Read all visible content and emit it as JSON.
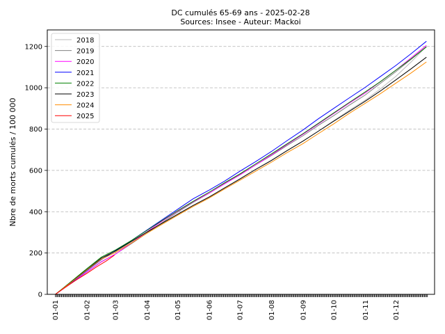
{
  "chart_data": {
    "type": "line",
    "title": "DC cumulés 65-69 ans  - 2025-02-28",
    "subtitle": "Sources: Insee - Auteur: Mackoi",
    "xlabel": "",
    "ylabel": "Nbre de morts cumulés / 100 000",
    "ylim": [
      0,
      1280
    ],
    "xlim": [
      -8,
      372
    ],
    "yticks": [
      0,
      200,
      400,
      600,
      800,
      1000,
      1200
    ],
    "xticks": [
      {
        "day": 0,
        "label": "01-01"
      },
      {
        "day": 31,
        "label": "01-02"
      },
      {
        "day": 59,
        "label": "01-03"
      },
      {
        "day": 90,
        "label": "01-04"
      },
      {
        "day": 120,
        "label": "01-05"
      },
      {
        "day": 151,
        "label": "01-06"
      },
      {
        "day": 181,
        "label": "01-07"
      },
      {
        "day": 212,
        "label": "01-08"
      },
      {
        "day": 243,
        "label": "01-09"
      },
      {
        "day": 273,
        "label": "01-10"
      },
      {
        "day": 304,
        "label": "01-11"
      },
      {
        "day": 334,
        "label": "01-12"
      }
    ],
    "grid": "y-dashed",
    "legend_position": "top-left",
    "series": [
      {
        "name": "2018",
        "color": "#bbbbbb",
        "x": [
          0,
          15,
          31,
          45,
          59,
          75,
          90,
          105,
          120,
          135,
          151,
          166,
          181,
          196,
          212,
          227,
          243,
          258,
          273,
          288,
          304,
          319,
          334,
          349,
          364
        ],
        "values": [
          0,
          55,
          115,
          168,
          205,
          255,
          300,
          345,
          385,
          425,
          470,
          515,
          560,
          605,
          650,
          695,
          742,
          790,
          840,
          890,
          940,
          995,
          1055,
          1125,
          1200
        ]
      },
      {
        "name": "2019",
        "color": "#808080",
        "x": [
          0,
          15,
          31,
          45,
          59,
          75,
          90,
          105,
          120,
          135,
          151,
          166,
          181,
          196,
          212,
          227,
          243,
          258,
          273,
          288,
          304,
          319,
          334,
          349,
          364
        ],
        "values": [
          0,
          52,
          108,
          158,
          195,
          247,
          297,
          348,
          398,
          445,
          490,
          537,
          580,
          625,
          672,
          720,
          768,
          818,
          865,
          915,
          965,
          1022,
          1078,
          1138,
          1198
        ]
      },
      {
        "name": "2020",
        "color": "#ff00ff",
        "x": [
          0,
          15,
          31,
          45,
          59,
          75,
          90,
          105,
          120,
          135,
          151,
          166,
          181,
          196,
          212,
          227,
          243,
          258,
          273,
          288,
          304,
          319,
          334,
          349,
          364
        ],
        "values": [
          0,
          52,
          108,
          157,
          195,
          250,
          303,
          355,
          403,
          448,
          490,
          535,
          578,
          625,
          675,
          725,
          775,
          825,
          875,
          925,
          975,
          1030,
          1085,
          1145,
          1205
        ]
      },
      {
        "name": "2021",
        "color": "#0000ff",
        "x": [
          0,
          15,
          31,
          45,
          59,
          75,
          90,
          105,
          120,
          135,
          151,
          166,
          181,
          196,
          212,
          227,
          243,
          258,
          273,
          288,
          304,
          319,
          334,
          349,
          364
        ],
        "values": [
          0,
          55,
          115,
          168,
          212,
          262,
          312,
          362,
          412,
          462,
          505,
          548,
          596,
          641,
          692,
          743,
          796,
          850,
          900,
          950,
          1002,
          1055,
          1108,
          1165,
          1225
        ]
      },
      {
        "name": "2022",
        "color": "#008000",
        "x": [
          0,
          15,
          31,
          45,
          59,
          75,
          90,
          105,
          120,
          135,
          151,
          166,
          181,
          196,
          212,
          227,
          243,
          258,
          273,
          288,
          304,
          319,
          334,
          349,
          364
        ],
        "values": [
          0,
          60,
          125,
          180,
          215,
          262,
          310,
          358,
          405,
          450,
          495,
          540,
          583,
          630,
          680,
          728,
          778,
          828,
          878,
          928,
          980,
          1030,
          1085,
          1140,
          1198
        ]
      },
      {
        "name": "2023",
        "color": "#000000",
        "x": [
          0,
          15,
          31,
          45,
          59,
          75,
          90,
          105,
          120,
          135,
          151,
          166,
          181,
          196,
          212,
          227,
          243,
          258,
          273,
          288,
          304,
          319,
          334,
          349,
          364
        ],
        "values": [
          0,
          58,
          120,
          175,
          210,
          258,
          302,
          345,
          388,
          430,
          472,
          515,
          558,
          603,
          648,
          695,
          742,
          790,
          838,
          885,
          935,
          985,
          1038,
          1092,
          1148
        ]
      },
      {
        "name": "2024",
        "color": "#ff8c00",
        "x": [
          0,
          15,
          31,
          45,
          59,
          75,
          90,
          105,
          120,
          135,
          151,
          166,
          181,
          196,
          212,
          227,
          243,
          258,
          273,
          288,
          304,
          319,
          334,
          349,
          364
        ],
        "values": [
          0,
          57,
          118,
          170,
          203,
          250,
          296,
          340,
          383,
          425,
          467,
          510,
          552,
          595,
          640,
          685,
          730,
          778,
          825,
          875,
          925,
          972,
          1022,
          1072,
          1125
        ]
      },
      {
        "name": "2025",
        "color": "#ff0000",
        "x": [
          0,
          10,
          20,
          31,
          40,
          50,
          58
        ],
        "values": [
          0,
          35,
          68,
          102,
          132,
          162,
          190
        ]
      }
    ]
  }
}
